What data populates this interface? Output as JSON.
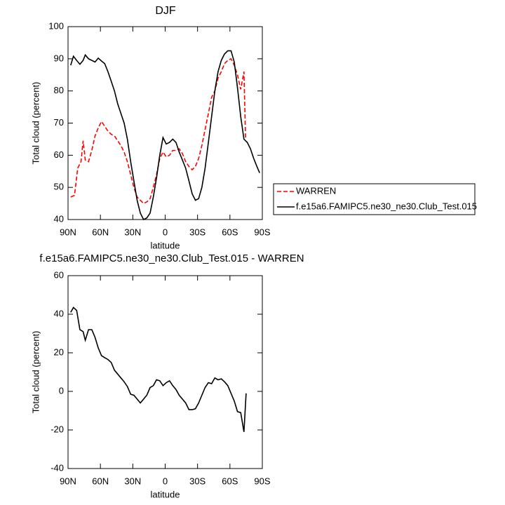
{
  "chart_data": [
    {
      "type": "line",
      "title": "DJF",
      "xlabel": "latitude",
      "ylabel": "Total cloud (percent)",
      "xlim": [
        90,
        -90
      ],
      "xticks": [
        {
          "value": 90,
          "label": "90N"
        },
        {
          "value": 60,
          "label": "60N"
        },
        {
          "value": 30,
          "label": "30N"
        },
        0,
        {
          "value": -30,
          "label": "30S"
        },
        {
          "value": -60,
          "label": "60S"
        },
        {
          "value": -90,
          "label": "90S"
        }
      ],
      "ylim": [
        40,
        100
      ],
      "yticks": [
        40,
        50,
        60,
        70,
        80,
        90,
        100
      ],
      "legend": "outside right",
      "series": [
        {
          "name": "WARREN",
          "color": "#ff0000",
          "style": "dashed",
          "x": [
            87.5,
            84,
            81,
            78,
            76,
            74,
            71,
            68,
            65,
            62,
            59,
            56,
            53,
            50,
            47,
            44,
            41,
            38,
            35,
            32,
            29,
            26,
            23,
            20,
            17,
            14,
            11,
            8,
            5,
            2,
            -1,
            -4,
            -7,
            -10,
            -13,
            -16,
            -19,
            -22,
            -25,
            -28,
            -31,
            -34,
            -37,
            -40,
            -43,
            -46,
            -49,
            -52,
            -55,
            -58,
            -61,
            -64,
            -67,
            -70,
            -73,
            -74.5
          ],
          "values": [
            47,
            47.5,
            56,
            58,
            64.5,
            58.5,
            58,
            61.5,
            66,
            68.5,
            70.5,
            69,
            67.5,
            66.5,
            66,
            64.5,
            63,
            61,
            58,
            54,
            50,
            47,
            46,
            45,
            45.5,
            46.5,
            50,
            54,
            59,
            61,
            59.5,
            60,
            61.5,
            61.5,
            62,
            60.5,
            58,
            56.5,
            55.5,
            56.5,
            59,
            63,
            68,
            73,
            78,
            80,
            84,
            86,
            88.5,
            89.5,
            90,
            88,
            85,
            80.5,
            86,
            65
          ]
        },
        {
          "name": "f.e15a6.FAMIPC5.ne30_ne30.Club_Test.015",
          "color": "#000000",
          "style": "solid",
          "x": [
            87.5,
            85,
            82,
            79,
            76,
            74,
            71,
            68,
            65,
            62,
            59,
            56,
            53,
            50,
            47,
            44,
            41,
            38,
            35,
            32,
            29,
            26,
            23,
            20,
            17,
            14,
            11,
            8,
            5,
            2,
            -1,
            -4,
            -7,
            -10,
            -13,
            -16,
            -19,
            -22,
            -25,
            -28,
            -31,
            -34,
            -37,
            -40,
            -43,
            -46,
            -49,
            -52,
            -55,
            -58,
            -61,
            -64,
            -67,
            -70,
            -73,
            -76,
            -79,
            -82,
            -85,
            -87.5
          ],
          "values": [
            88,
            90.8,
            89.5,
            88.3,
            89.5,
            91.2,
            90,
            89.5,
            89,
            90.2,
            89.3,
            88.5,
            86,
            83,
            80,
            76,
            73,
            70,
            65,
            58,
            52,
            46,
            42,
            40,
            40.5,
            42,
            47,
            53,
            60,
            65.5,
            63.5,
            64,
            65,
            64,
            61,
            58.5,
            56,
            52,
            48,
            46,
            46.5,
            50,
            56,
            64,
            72,
            80,
            86,
            89.5,
            91.5,
            92.5,
            92.5,
            89,
            81,
            72,
            65,
            64,
            62,
            59,
            56.5,
            54.5
          ]
        }
      ]
    },
    {
      "type": "line",
      "title": "f.e15a6.FAMIPC5.ne30_ne30.Club_Test.015 - WARREN",
      "xlabel": "latitude",
      "ylabel": "Total cloud (percent)",
      "xlim": [
        90,
        -90
      ],
      "xticks": [
        {
          "value": 90,
          "label": "90N"
        },
        {
          "value": 60,
          "label": "60N"
        },
        {
          "value": 30,
          "label": "30N"
        },
        0,
        {
          "value": -30,
          "label": "30S"
        },
        {
          "value": -60,
          "label": "60S"
        },
        {
          "value": -90,
          "label": "90S"
        }
      ],
      "ylim": [
        -40,
        60
      ],
      "yticks": [
        -40,
        -20,
        0,
        20,
        40,
        60
      ],
      "series": [
        {
          "color": "#000000",
          "style": "solid",
          "x": [
            87.5,
            85,
            82,
            79,
            76,
            74,
            71,
            68,
            65,
            62,
            59,
            56,
            53,
            50,
            47,
            44,
            41,
            38,
            35,
            32,
            29,
            26,
            23,
            20,
            17,
            14,
            11,
            8,
            5,
            2,
            -1,
            -4,
            -7,
            -10,
            -13,
            -16,
            -19,
            -22,
            -25,
            -28,
            -31,
            -34,
            -37,
            -40,
            -43,
            -46,
            -49,
            -52,
            -55,
            -58,
            -61,
            -64,
            -67,
            -70,
            -73,
            -75
          ],
          "values": [
            41,
            43.5,
            42,
            32,
            31,
            26.5,
            32,
            32,
            28,
            22.5,
            18.5,
            17.5,
            16.5,
            15,
            11,
            9,
            7,
            5,
            2.5,
            -1.5,
            -2,
            -4,
            -6,
            -4,
            -2,
            2,
            3,
            6,
            5.5,
            3,
            4.5,
            5.5,
            3,
            1,
            -2,
            -4,
            -6,
            -9.5,
            -9.5,
            -9,
            -6,
            -2,
            2,
            4.5,
            4,
            7,
            6,
            6.5,
            5,
            3,
            -1,
            -5,
            -10.5,
            -11,
            -21,
            -1
          ]
        }
      ]
    }
  ]
}
